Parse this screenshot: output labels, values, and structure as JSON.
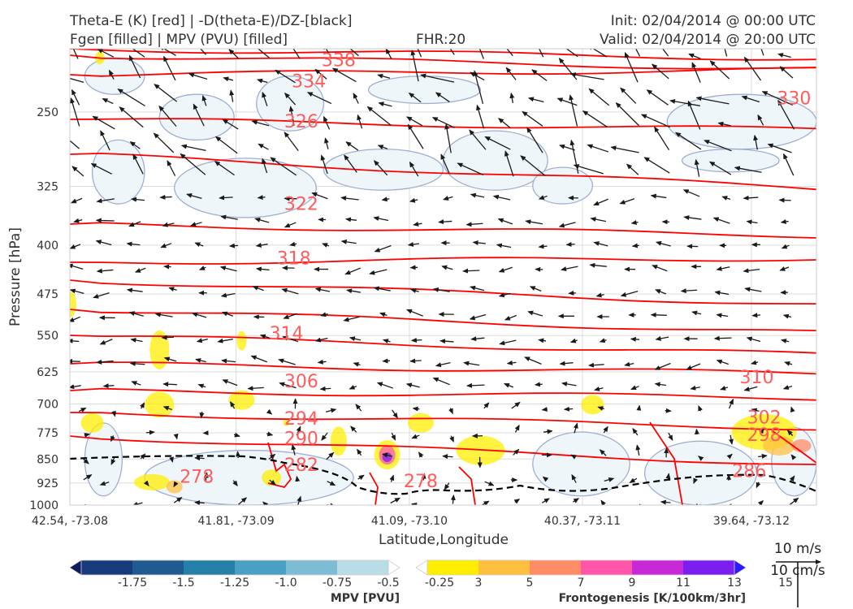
{
  "header": {
    "title_left_1": "Theta-E (K) [red] | -D(theta-E)/DZ-[black]",
    "title_left_2": "Fgen [filled] | MPV (PVU) [filled]",
    "fhr": "FHR:20",
    "init": "Init: 02/04/2014 @ 00:00 UTC",
    "valid": "Valid: 02/04/2014 @ 20:00 UTC"
  },
  "colors": {
    "theta_e": "#ff0000",
    "theta_e_label": "#ff5c5c",
    "dtheta_dz": "#000000",
    "mpv_contour": "#a0aed2",
    "mpv_fill": "#eef6f9",
    "wind": "#1a1a1a",
    "grid": "#dcdcdc"
  },
  "chart_data": {
    "type": "cross-section",
    "xlabel": "Latitude,Longitude",
    "ylabel": "Pressure [hPa]",
    "ylim": [
      1000,
      200
    ],
    "y_scale": "log",
    "x_ticks": [
      "42.54, -73.08",
      "41.81, -73.09",
      "41.09, -73.10",
      "40.37, -73.11",
      "39.64, -73.12"
    ],
    "y_ticks": [
      250,
      325,
      400,
      475,
      550,
      625,
      700,
      775,
      850,
      925,
      1000
    ],
    "grid": true,
    "theta_e_labels": [
      {
        "text": "338",
        "x": 0.36,
        "p": 208
      },
      {
        "text": "334",
        "x": 0.32,
        "p": 224
      },
      {
        "text": "330",
        "x": 0.97,
        "p": 238
      },
      {
        "text": "326",
        "x": 0.31,
        "p": 258
      },
      {
        "text": "322",
        "x": 0.31,
        "p": 345
      },
      {
        "text": "318",
        "x": 0.3,
        "p": 418
      },
      {
        "text": "314",
        "x": 0.29,
        "p": 545
      },
      {
        "text": "310",
        "x": 0.92,
        "p": 636
      },
      {
        "text": "306",
        "x": 0.31,
        "p": 645
      },
      {
        "text": "302",
        "x": 0.93,
        "p": 733
      },
      {
        "text": "298",
        "x": 0.93,
        "p": 779
      },
      {
        "text": "294",
        "x": 0.31,
        "p": 736
      },
      {
        "text": "290",
        "x": 0.31,
        "p": 790
      },
      {
        "text": "286",
        "x": 0.91,
        "p": 885
      },
      {
        "text": "282",
        "x": 0.31,
        "p": 866
      },
      {
        "text": "278",
        "x": 0.17,
        "p": 903
      },
      {
        "text": "278",
        "x": 0.47,
        "p": 918
      }
    ],
    "legend_mpv": {
      "label": "MPV [PVU]",
      "ticks": [
        "-1.75",
        "-1.5",
        "-1.25",
        "-1.0",
        "-0.75",
        "-0.5",
        "-0.25"
      ],
      "colors": [
        "#0b1c5e",
        "#173a7a",
        "#1f5a90",
        "#2480a8",
        "#4aa0c2",
        "#7dbdd4",
        "#b8dde6",
        "#ffffff"
      ]
    },
    "legend_fgen": {
      "label": "Frontogenesis [K/100km/3hr]",
      "ticks": [
        "3",
        "5",
        "7",
        "9",
        "11",
        "13",
        "15"
      ],
      "colors": [
        "#ffffff",
        "#ffee00",
        "#ffc040",
        "#ff8c66",
        "#ff55a8",
        "#c829d8",
        "#7a1ff0",
        "#2a1aff"
      ]
    },
    "wind_key": {
      "label_top": "10 m/s",
      "label_bottom": "10 cm/s"
    }
  }
}
